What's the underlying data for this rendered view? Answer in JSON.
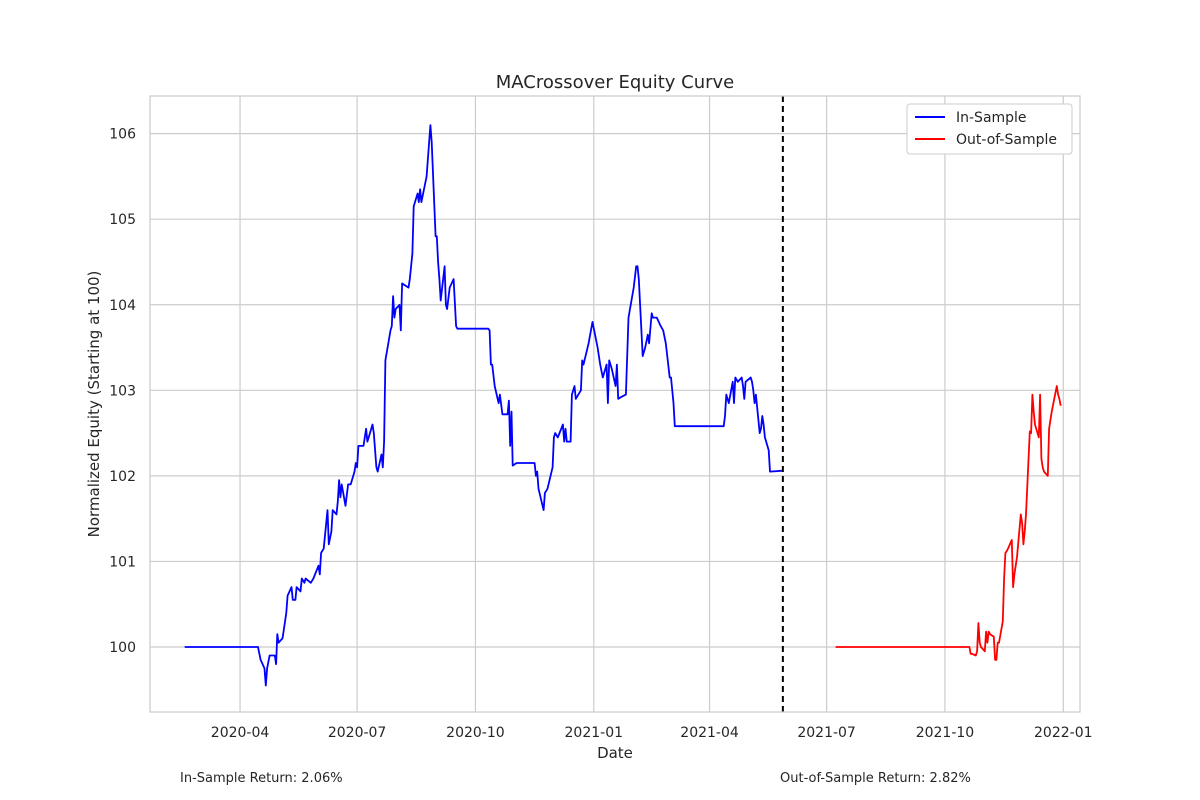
{
  "chart_data": {
    "type": "line",
    "title": "MACrossover Equity Curve",
    "xlabel": "Date",
    "ylabel": "Normalized Equity (Starting at 100)",
    "xlim": [
      "2020-01-22",
      "2022-01-14"
    ],
    "ylim": [
      99.24,
      106.44
    ],
    "x_ticks": [
      "2020-04",
      "2020-07",
      "2020-10",
      "2021-01",
      "2021-04",
      "2021-07",
      "2021-10",
      "2022-01"
    ],
    "x_tick_dates": [
      "2020-04-01",
      "2020-07-01",
      "2020-10-01",
      "2021-01-01",
      "2021-04-01",
      "2021-07-01",
      "2021-10-01",
      "2022-01-01"
    ],
    "y_ticks": [
      100,
      101,
      102,
      103,
      104,
      105,
      106
    ],
    "grid": true,
    "legend_position": "top-right",
    "split_date": "2021-05-28",
    "series": [
      {
        "name": "In-Sample",
        "color": "#0000ff",
        "points": [
          [
            "2020-02-18",
            100.0
          ],
          [
            "2020-04-15",
            100.0
          ],
          [
            "2020-04-17",
            99.85
          ],
          [
            "2020-04-20",
            99.75
          ],
          [
            "2020-04-21",
            99.55
          ],
          [
            "2020-04-22",
            99.75
          ],
          [
            "2020-04-24",
            99.9
          ],
          [
            "2020-04-28",
            99.9
          ],
          [
            "2020-04-29",
            99.8
          ],
          [
            "2020-04-30",
            100.15
          ],
          [
            "2020-05-01",
            100.05
          ],
          [
            "2020-05-04",
            100.1
          ],
          [
            "2020-05-05",
            100.2
          ],
          [
            "2020-05-07",
            100.4
          ],
          [
            "2020-05-08",
            100.6
          ],
          [
            "2020-05-11",
            100.7
          ],
          [
            "2020-05-12",
            100.55
          ],
          [
            "2020-05-14",
            100.55
          ],
          [
            "2020-05-15",
            100.7
          ],
          [
            "2020-05-18",
            100.65
          ],
          [
            "2020-05-19",
            100.8
          ],
          [
            "2020-05-21",
            100.75
          ],
          [
            "2020-05-22",
            100.8
          ],
          [
            "2020-05-26",
            100.75
          ],
          [
            "2020-05-28",
            100.8
          ],
          [
            "2020-06-01",
            100.95
          ],
          [
            "2020-06-02",
            100.85
          ],
          [
            "2020-06-03",
            101.1
          ],
          [
            "2020-06-05",
            101.15
          ],
          [
            "2020-06-08",
            101.6
          ],
          [
            "2020-06-09",
            101.2
          ],
          [
            "2020-06-11",
            101.35
          ],
          [
            "2020-06-12",
            101.6
          ],
          [
            "2020-06-15",
            101.55
          ],
          [
            "2020-06-16",
            101.7
          ],
          [
            "2020-06-17",
            101.95
          ],
          [
            "2020-06-18",
            101.75
          ],
          [
            "2020-06-19",
            101.9
          ],
          [
            "2020-06-22",
            101.65
          ],
          [
            "2020-06-24",
            101.9
          ],
          [
            "2020-06-26",
            101.9
          ],
          [
            "2020-06-29",
            102.05
          ],
          [
            "2020-06-30",
            102.15
          ],
          [
            "2020-07-01",
            102.1
          ],
          [
            "2020-07-02",
            102.35
          ],
          [
            "2020-07-06",
            102.35
          ],
          [
            "2020-07-08",
            102.55
          ],
          [
            "2020-07-09",
            102.4
          ],
          [
            "2020-07-10",
            102.45
          ],
          [
            "2020-07-13",
            102.6
          ],
          [
            "2020-07-14",
            102.5
          ],
          [
            "2020-07-16",
            102.1
          ],
          [
            "2020-07-17",
            102.05
          ],
          [
            "2020-07-20",
            102.25
          ],
          [
            "2020-07-21",
            102.1
          ],
          [
            "2020-07-22",
            102.4
          ],
          [
            "2020-07-23",
            103.35
          ],
          [
            "2020-07-27",
            103.7
          ],
          [
            "2020-07-28",
            103.75
          ],
          [
            "2020-07-29",
            104.1
          ],
          [
            "2020-07-30",
            103.85
          ],
          [
            "2020-07-31",
            103.95
          ],
          [
            "2020-08-03",
            104.0
          ],
          [
            "2020-08-04",
            103.7
          ],
          [
            "2020-08-05",
            104.25
          ],
          [
            "2020-08-10",
            104.2
          ],
          [
            "2020-08-11",
            104.3
          ],
          [
            "2020-08-13",
            104.6
          ],
          [
            "2020-08-14",
            105.15
          ],
          [
            "2020-08-17",
            105.3
          ],
          [
            "2020-08-18",
            105.2
          ],
          [
            "2020-08-19",
            105.35
          ],
          [
            "2020-08-20",
            105.2
          ],
          [
            "2020-08-24",
            105.5
          ],
          [
            "2020-08-27",
            106.1
          ],
          [
            "2020-08-28",
            105.9
          ],
          [
            "2020-08-31",
            104.8
          ],
          [
            "2020-09-01",
            104.8
          ],
          [
            "2020-09-02",
            104.5
          ],
          [
            "2020-09-03",
            104.3
          ],
          [
            "2020-09-04",
            104.05
          ],
          [
            "2020-09-07",
            104.45
          ],
          [
            "2020-09-08",
            104.0
          ],
          [
            "2020-09-09",
            103.95
          ],
          [
            "2020-09-11",
            104.2
          ],
          [
            "2020-09-14",
            104.3
          ],
          [
            "2020-09-16",
            103.75
          ],
          [
            "2020-09-17",
            103.72
          ],
          [
            "2020-10-11",
            103.72
          ],
          [
            "2020-10-12",
            103.7
          ],
          [
            "2020-10-13",
            103.3
          ],
          [
            "2020-10-14",
            103.3
          ],
          [
            "2020-10-16",
            103.05
          ],
          [
            "2020-10-19",
            102.85
          ],
          [
            "2020-10-20",
            102.95
          ],
          [
            "2020-10-22",
            102.72
          ],
          [
            "2020-10-26",
            102.72
          ],
          [
            "2020-10-27",
            102.88
          ],
          [
            "2020-10-28",
            102.35
          ],
          [
            "2020-10-29",
            102.75
          ],
          [
            "2020-10-30",
            102.12
          ],
          [
            "2020-11-02",
            102.15
          ],
          [
            "2020-11-12",
            102.15
          ],
          [
            "2020-11-16",
            102.15
          ],
          [
            "2020-11-17",
            102.0
          ],
          [
            "2020-11-18",
            102.05
          ],
          [
            "2020-11-19",
            101.85
          ],
          [
            "2020-11-23",
            101.6
          ],
          [
            "2020-11-24",
            101.8
          ],
          [
            "2020-11-26",
            101.85
          ],
          [
            "2020-11-30",
            102.1
          ],
          [
            "2020-12-01",
            102.45
          ],
          [
            "2020-12-02",
            102.5
          ],
          [
            "2020-12-04",
            102.45
          ],
          [
            "2020-12-08",
            102.6
          ],
          [
            "2020-12-09",
            102.4
          ],
          [
            "2020-12-10",
            102.55
          ],
          [
            "2020-12-11",
            102.4
          ],
          [
            "2020-12-14",
            102.4
          ],
          [
            "2020-12-15",
            102.95
          ],
          [
            "2020-12-17",
            103.05
          ],
          [
            "2020-12-18",
            102.9
          ],
          [
            "2020-12-22",
            103.0
          ],
          [
            "2020-12-23",
            103.35
          ],
          [
            "2020-12-24",
            103.3
          ],
          [
            "2020-12-28",
            103.55
          ],
          [
            "2020-12-31",
            103.8
          ],
          [
            "2021-01-04",
            103.5
          ],
          [
            "2021-01-06",
            103.3
          ],
          [
            "2021-01-08",
            103.15
          ],
          [
            "2021-01-11",
            103.3
          ],
          [
            "2021-01-12",
            102.85
          ],
          [
            "2021-01-13",
            103.35
          ],
          [
            "2021-01-15",
            103.25
          ],
          [
            "2021-01-18",
            103.05
          ],
          [
            "2021-01-19",
            103.3
          ],
          [
            "2021-01-20",
            102.9
          ],
          [
            "2021-01-22",
            102.92
          ],
          [
            "2021-01-26",
            102.95
          ],
          [
            "2021-01-28",
            103.85
          ],
          [
            "2021-02-01",
            104.2
          ],
          [
            "2021-02-03",
            104.45
          ],
          [
            "2021-02-04",
            104.45
          ],
          [
            "2021-02-05",
            104.3
          ],
          [
            "2021-02-08",
            103.4
          ],
          [
            "2021-02-10",
            103.5
          ],
          [
            "2021-02-12",
            103.65
          ],
          [
            "2021-02-13",
            103.55
          ],
          [
            "2021-02-15",
            103.9
          ],
          [
            "2021-02-16",
            103.85
          ],
          [
            "2021-02-19",
            103.85
          ],
          [
            "2021-02-22",
            103.75
          ],
          [
            "2021-02-24",
            103.7
          ],
          [
            "2021-02-26",
            103.55
          ],
          [
            "2021-03-01",
            103.15
          ],
          [
            "2021-03-02",
            103.15
          ],
          [
            "2021-03-04",
            102.85
          ],
          [
            "2021-03-05",
            102.58
          ],
          [
            "2021-04-12",
            102.58
          ],
          [
            "2021-04-13",
            102.7
          ],
          [
            "2021-04-14",
            102.95
          ],
          [
            "2021-04-16",
            102.85
          ],
          [
            "2021-04-19",
            103.1
          ],
          [
            "2021-04-20",
            102.85
          ],
          [
            "2021-04-21",
            103.15
          ],
          [
            "2021-04-23",
            103.1
          ],
          [
            "2021-04-26",
            103.15
          ],
          [
            "2021-04-27",
            103.05
          ],
          [
            "2021-04-28",
            102.9
          ],
          [
            "2021-04-29",
            103.1
          ],
          [
            "2021-05-03",
            103.15
          ],
          [
            "2021-05-04",
            103.1
          ],
          [
            "2021-05-05",
            103.0
          ],
          [
            "2021-05-06",
            102.85
          ],
          [
            "2021-05-07",
            102.95
          ],
          [
            "2021-05-10",
            102.5
          ],
          [
            "2021-05-11",
            102.55
          ],
          [
            "2021-05-12",
            102.7
          ],
          [
            "2021-05-13",
            102.6
          ],
          [
            "2021-05-14",
            102.45
          ],
          [
            "2021-05-17",
            102.3
          ],
          [
            "2021-05-18",
            102.05
          ],
          [
            "2021-05-28",
            102.06
          ]
        ]
      },
      {
        "name": "Out-of-Sample",
        "color": "#ff0000",
        "points": [
          [
            "2021-07-08",
            100.0
          ],
          [
            "2021-10-19",
            100.0
          ],
          [
            "2021-10-20",
            100.0
          ],
          [
            "2021-10-21",
            99.92
          ],
          [
            "2021-10-22",
            99.92
          ],
          [
            "2021-10-25",
            99.9
          ],
          [
            "2021-10-26",
            99.95
          ],
          [
            "2021-10-27",
            100.28
          ],
          [
            "2021-10-28",
            100.05
          ],
          [
            "2021-10-29",
            100.0
          ],
          [
            "2021-11-01",
            99.95
          ],
          [
            "2021-11-02",
            100.18
          ],
          [
            "2021-11-03",
            100.05
          ],
          [
            "2021-11-04",
            100.18
          ],
          [
            "2021-11-05",
            100.15
          ],
          [
            "2021-11-08",
            100.12
          ],
          [
            "2021-11-09",
            99.85
          ],
          [
            "2021-11-10",
            99.85
          ],
          [
            "2021-11-11",
            100.05
          ],
          [
            "2021-11-12",
            100.05
          ],
          [
            "2021-11-15",
            100.3
          ],
          [
            "2021-11-16",
            100.8
          ],
          [
            "2021-11-17",
            101.1
          ],
          [
            "2021-11-18",
            101.12
          ],
          [
            "2021-11-19",
            101.15
          ],
          [
            "2021-11-22",
            101.25
          ],
          [
            "2021-11-23",
            100.7
          ],
          [
            "2021-11-24",
            100.85
          ],
          [
            "2021-11-26",
            101.05
          ],
          [
            "2021-11-29",
            101.55
          ],
          [
            "2021-11-30",
            101.45
          ],
          [
            "2021-12-01",
            101.2
          ],
          [
            "2021-12-02",
            101.35
          ],
          [
            "2021-12-03",
            101.55
          ],
          [
            "2021-12-06",
            102.52
          ],
          [
            "2021-12-07",
            102.5
          ],
          [
            "2021-12-08",
            102.95
          ],
          [
            "2021-12-09",
            102.75
          ],
          [
            "2021-12-10",
            102.6
          ],
          [
            "2021-12-13",
            102.45
          ],
          [
            "2021-12-14",
            102.95
          ],
          [
            "2021-12-15",
            102.2
          ],
          [
            "2021-12-16",
            102.1
          ],
          [
            "2021-12-17",
            102.05
          ],
          [
            "2021-12-20",
            102.0
          ],
          [
            "2021-12-21",
            102.55
          ],
          [
            "2021-12-22",
            102.65
          ],
          [
            "2021-12-23",
            102.75
          ],
          [
            "2021-12-27",
            103.05
          ],
          [
            "2021-12-28",
            102.95
          ],
          [
            "2021-12-29",
            102.9
          ],
          [
            "2021-12-30",
            102.82
          ]
        ]
      }
    ],
    "annotations": {
      "in_sample": "In-Sample Return: 2.06%",
      "out_of_sample": "Out-of-Sample Return: 2.82%"
    }
  }
}
